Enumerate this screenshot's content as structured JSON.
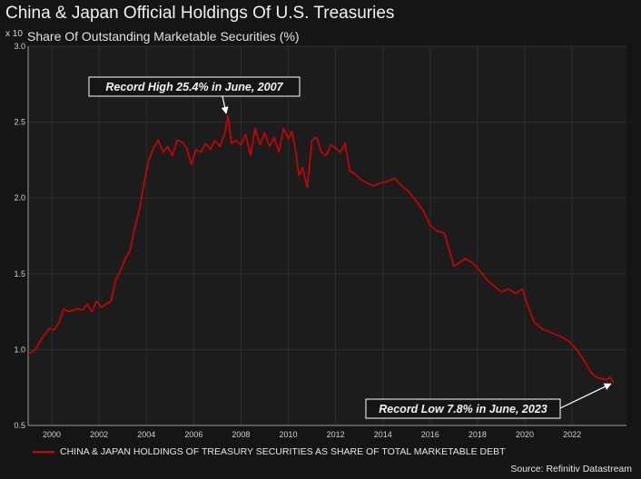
{
  "header": {
    "title": "China & Japan Official Holdings Of U.S. Treasuries",
    "subtitle": "Share Of Outstanding Marketable Securities (%)",
    "axis_multiplier": "x 10"
  },
  "legend": {
    "label": "CHINA & JAPAN HOLDINGS OF TREASURY SECURITIES AS SHARE OF TOTAL MARKETABLE DEBT"
  },
  "source": "Source: Refinitiv Datastream",
  "colors": {
    "series": "#d40000",
    "background": "#151515",
    "plot_background": "#1c1c1c",
    "grid": "#2e2e2e"
  },
  "chart_data": {
    "type": "line",
    "title": "China & Japan Official Holdings Of U.S. Treasuries",
    "subtitle": "Share Of Outstanding Marketable Securities (%)",
    "ylabel": "x 10",
    "xlabel": "",
    "xlim": [
      1999.0,
      2024.3
    ],
    "ylim": [
      0.5,
      3.0
    ],
    "x_ticks": [
      2000,
      2002,
      2004,
      2006,
      2008,
      2010,
      2012,
      2014,
      2016,
      2018,
      2020,
      2022
    ],
    "x_tick_labels": [
      "2000",
      "2002",
      "2004",
      "2006",
      "2008",
      "2010",
      "2012",
      "2014",
      "2016",
      "2018",
      "2020",
      "2022"
    ],
    "y_ticks": [
      0.5,
      1.0,
      1.5,
      2.0,
      2.5,
      3.0
    ],
    "y_tick_labels": [
      "0.5",
      "1.0",
      "1.5",
      "2.0",
      "2.5",
      "3.0"
    ],
    "grid": true,
    "series": [
      {
        "name": "CHINA & JAPAN HOLDINGS OF TREASURY SECURITIES AS SHARE OF TOTAL MARKETABLE DEBT",
        "x": [
          1999.0,
          1999.3,
          1999.6,
          1999.9,
          2000.1,
          2000.3,
          2000.5,
          2000.7,
          2000.9,
          2001.1,
          2001.3,
          2001.5,
          2001.7,
          2001.9,
          2002.1,
          2002.3,
          2002.5,
          2002.7,
          2002.9,
          2003.1,
          2003.3,
          2003.5,
          2003.7,
          2003.9,
          2004.1,
          2004.3,
          2004.5,
          2004.7,
          2004.9,
          2005.1,
          2005.3,
          2005.5,
          2005.7,
          2005.9,
          2006.1,
          2006.3,
          2006.5,
          2006.7,
          2006.9,
          2007.1,
          2007.3,
          2007.45,
          2007.6,
          2007.8,
          2008.0,
          2008.2,
          2008.4,
          2008.6,
          2008.8,
          2009.0,
          2009.2,
          2009.4,
          2009.6,
          2009.8,
          2010.0,
          2010.15,
          2010.3,
          2010.45,
          2010.6,
          2010.8,
          2011.0,
          2011.2,
          2011.4,
          2011.6,
          2011.8,
          2012.0,
          2012.2,
          2012.4,
          2012.6,
          2012.8,
          2013.0,
          2013.3,
          2013.6,
          2013.9,
          2014.2,
          2014.5,
          2014.8,
          2015.1,
          2015.4,
          2015.7,
          2016.0,
          2016.3,
          2016.6,
          2016.8,
          2017.0,
          2017.2,
          2017.5,
          2017.8,
          2018.1,
          2018.4,
          2018.7,
          2019.0,
          2019.3,
          2019.6,
          2019.9,
          2020.1,
          2020.4,
          2020.7,
          2021.0,
          2021.3,
          2021.6,
          2021.9,
          2022.2,
          2022.5,
          2022.8,
          2023.0,
          2023.2,
          2023.45,
          2023.6,
          2023.75
        ],
        "y": [
          0.97,
          1.0,
          1.08,
          1.14,
          1.13,
          1.18,
          1.27,
          1.25,
          1.26,
          1.27,
          1.26,
          1.3,
          1.25,
          1.32,
          1.28,
          1.3,
          1.32,
          1.46,
          1.52,
          1.6,
          1.65,
          1.8,
          1.92,
          2.1,
          2.25,
          2.33,
          2.38,
          2.3,
          2.34,
          2.28,
          2.38,
          2.37,
          2.33,
          2.22,
          2.32,
          2.3,
          2.36,
          2.32,
          2.38,
          2.34,
          2.42,
          2.54,
          2.36,
          2.38,
          2.35,
          2.42,
          2.28,
          2.46,
          2.35,
          2.43,
          2.34,
          2.4,
          2.3,
          2.46,
          2.39,
          2.44,
          2.32,
          2.15,
          2.2,
          2.07,
          2.38,
          2.4,
          2.3,
          2.28,
          2.35,
          2.33,
          2.3,
          2.36,
          2.18,
          2.16,
          2.13,
          2.1,
          2.08,
          2.1,
          2.11,
          2.13,
          2.08,
          2.04,
          1.98,
          1.92,
          1.82,
          1.78,
          1.77,
          1.66,
          1.55,
          1.57,
          1.6,
          1.57,
          1.52,
          1.46,
          1.42,
          1.38,
          1.4,
          1.37,
          1.4,
          1.3,
          1.18,
          1.14,
          1.12,
          1.1,
          1.08,
          1.05,
          1.0,
          0.93,
          0.85,
          0.82,
          0.81,
          0.8,
          0.82,
          0.78
        ]
      }
    ],
    "annotations": [
      {
        "text": "Record High 25.4% in June, 2007",
        "x": 2007.45,
        "y": 2.54
      },
      {
        "text": "Record Low 7.8% in June, 2023",
        "x": 2023.75,
        "y": 0.78
      }
    ]
  }
}
